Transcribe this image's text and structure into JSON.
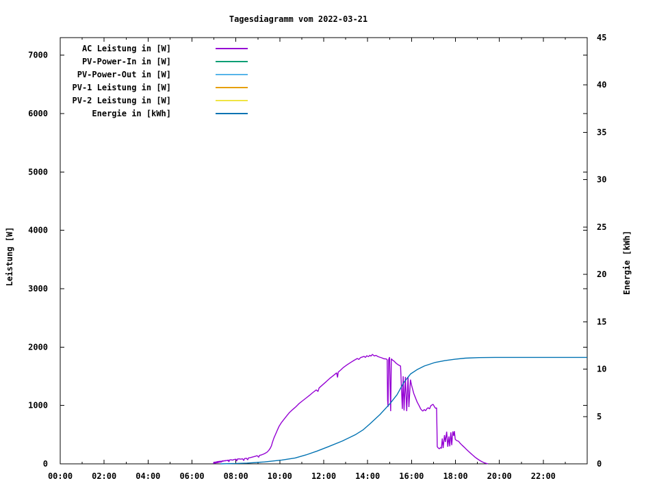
{
  "chart_data": {
    "type": "line",
    "title": "Tagesdiagramm vom 2022-03-21",
    "xlabel": "",
    "ylabel": "Leistung [W]",
    "y2label": "Energie [kWh]",
    "x_axis": {
      "min": 0,
      "max": 24,
      "major_tick_hours": [
        0,
        2,
        4,
        6,
        8,
        10,
        12,
        14,
        16,
        18,
        20,
        22
      ],
      "minor_every_hours": 1,
      "tick_labels": [
        "00:00",
        "02:00",
        "04:00",
        "06:00",
        "08:00",
        "10:00",
        "12:00",
        "14:00",
        "16:00",
        "18:00",
        "20:00",
        "22:00"
      ]
    },
    "y_left_axis": {
      "label": "Leistung [W]",
      "min": 0,
      "max": 7300,
      "ticks": [
        0,
        1000,
        2000,
        3000,
        4000,
        5000,
        6000,
        7000
      ]
    },
    "y_right_axis": {
      "label": "Energie [kWh]",
      "min": 0,
      "max": 45,
      "ticks": [
        0,
        5,
        10,
        15,
        20,
        25,
        30,
        35,
        40,
        45
      ]
    },
    "grid": false,
    "legend_position": "top-left-inside",
    "legend": [
      {
        "label": "AC Leistung in [W]",
        "color": "#9400d3"
      },
      {
        "label": "PV-Power-In in [W]",
        "color": "#009e73"
      },
      {
        "label": "PV-Power-Out in [W]",
        "color": "#56b4e9"
      },
      {
        "label": "PV-1 Leistung in [W]",
        "color": "#e69f00"
      },
      {
        "label": "PV-2 Leistung in [W]",
        "color": "#f0e442"
      },
      {
        "label": "Energie in [kWh]",
        "color": "#0072b2"
      }
    ],
    "series": [
      {
        "name": "AC Leistung in [W]",
        "axis": "left",
        "color": "#9400d3",
        "unit": "W",
        "points": [
          [
            6.98,
            2
          ],
          [
            7.0,
            30
          ],
          [
            7.02,
            6
          ],
          [
            7.04,
            34
          ],
          [
            7.06,
            10
          ],
          [
            7.08,
            36
          ],
          [
            7.1,
            12
          ],
          [
            7.12,
            40
          ],
          [
            7.14,
            14
          ],
          [
            7.16,
            44
          ],
          [
            7.18,
            16
          ],
          [
            7.2,
            46
          ],
          [
            7.22,
            20
          ],
          [
            7.25,
            48
          ],
          [
            7.28,
            24
          ],
          [
            7.31,
            50
          ],
          [
            7.34,
            28
          ],
          [
            7.38,
            55
          ],
          [
            7.42,
            42
          ],
          [
            7.46,
            58
          ],
          [
            7.5,
            48
          ],
          [
            7.55,
            60
          ],
          [
            7.6,
            54
          ],
          [
            7.65,
            66
          ],
          [
            7.68,
            34
          ],
          [
            7.71,
            66
          ],
          [
            7.78,
            70
          ],
          [
            7.85,
            64
          ],
          [
            7.92,
            74
          ],
          [
            8.0,
            80
          ],
          [
            8.04,
            48
          ],
          [
            8.07,
            82
          ],
          [
            8.15,
            86
          ],
          [
            8.23,
            80
          ],
          [
            8.3,
            88
          ],
          [
            8.36,
            56
          ],
          [
            8.39,
            90
          ],
          [
            8.48,
            96
          ],
          [
            8.54,
            68
          ],
          [
            8.57,
            100
          ],
          [
            8.67,
            108
          ],
          [
            8.77,
            118
          ],
          [
            8.87,
            128
          ],
          [
            8.97,
            140
          ],
          [
            9.04,
            112
          ],
          [
            9.07,
            144
          ],
          [
            9.15,
            152
          ],
          [
            9.24,
            164
          ],
          [
            9.33,
            180
          ],
          [
            9.42,
            200
          ],
          [
            9.5,
            232
          ],
          [
            9.57,
            270
          ],
          [
            9.62,
            310
          ],
          [
            9.66,
            363
          ],
          [
            9.73,
            440
          ],
          [
            9.79,
            492
          ],
          [
            9.88,
            570
          ],
          [
            9.97,
            645
          ],
          [
            10.08,
            710
          ],
          [
            10.19,
            762
          ],
          [
            10.31,
            820
          ],
          [
            10.44,
            879
          ],
          [
            10.58,
            928
          ],
          [
            10.72,
            973
          ],
          [
            10.87,
            1030
          ],
          [
            11.03,
            1078
          ],
          [
            11.19,
            1125
          ],
          [
            11.35,
            1172
          ],
          [
            11.5,
            1220
          ],
          [
            11.66,
            1266
          ],
          [
            11.74,
            1240
          ],
          [
            11.79,
            1300
          ],
          [
            11.97,
            1360
          ],
          [
            12.12,
            1410
          ],
          [
            12.28,
            1465
          ],
          [
            12.44,
            1512
          ],
          [
            12.59,
            1559
          ],
          [
            12.63,
            1480
          ],
          [
            12.66,
            1570
          ],
          [
            12.78,
            1610
          ],
          [
            12.9,
            1652
          ],
          [
            13.06,
            1695
          ],
          [
            13.22,
            1735
          ],
          [
            13.38,
            1772
          ],
          [
            13.53,
            1805
          ],
          [
            13.6,
            1788
          ],
          [
            13.68,
            1820
          ],
          [
            13.84,
            1840
          ],
          [
            13.9,
            1822
          ],
          [
            13.96,
            1852
          ],
          [
            14.04,
            1836
          ],
          [
            14.1,
            1860
          ],
          [
            14.15,
            1845
          ],
          [
            14.22,
            1875
          ],
          [
            14.3,
            1848
          ],
          [
            14.38,
            1858
          ],
          [
            14.46,
            1840
          ],
          [
            14.54,
            1828
          ],
          [
            14.64,
            1816
          ],
          [
            14.74,
            1800
          ],
          [
            14.85,
            1797
          ],
          [
            14.89,
            1782
          ],
          [
            14.91,
            1090
          ],
          [
            14.93,
            976
          ],
          [
            14.96,
            1790
          ],
          [
            15.0,
            1828
          ],
          [
            15.03,
            1200
          ],
          [
            15.05,
            903
          ],
          [
            15.08,
            1800
          ],
          [
            15.12,
            1782
          ],
          [
            15.2,
            1760
          ],
          [
            15.3,
            1722
          ],
          [
            15.4,
            1695
          ],
          [
            15.5,
            1675
          ],
          [
            15.58,
            940
          ],
          [
            15.62,
            1500
          ],
          [
            15.66,
            914
          ],
          [
            15.72,
            1490
          ],
          [
            15.78,
            903
          ],
          [
            15.84,
            1488
          ],
          [
            15.88,
            973
          ],
          [
            15.95,
            1442
          ],
          [
            16.0,
            1348
          ],
          [
            16.1,
            1207
          ],
          [
            16.18,
            1130
          ],
          [
            16.26,
            1055
          ],
          [
            16.34,
            1000
          ],
          [
            16.42,
            938
          ],
          [
            16.51,
            903
          ],
          [
            16.58,
            930
          ],
          [
            16.64,
            910
          ],
          [
            16.7,
            945
          ],
          [
            16.76,
            961
          ],
          [
            16.82,
            940
          ],
          [
            16.88,
            996
          ],
          [
            16.98,
            1020
          ],
          [
            17.05,
            973
          ],
          [
            17.1,
            950
          ],
          [
            17.14,
            960
          ],
          [
            17.16,
            560
          ],
          [
            17.17,
            293
          ],
          [
            17.22,
            270
          ],
          [
            17.27,
            258
          ],
          [
            17.32,
            280
          ],
          [
            17.36,
            265
          ],
          [
            17.4,
            434
          ],
          [
            17.44,
            270
          ],
          [
            17.5,
            492
          ],
          [
            17.54,
            375
          ],
          [
            17.6,
            551
          ],
          [
            17.65,
            293
          ],
          [
            17.7,
            469
          ],
          [
            17.74,
            300
          ],
          [
            17.79,
            540
          ],
          [
            17.83,
            320
          ],
          [
            17.88,
            555
          ],
          [
            17.92,
            480
          ],
          [
            17.95,
            560
          ],
          [
            17.99,
            420
          ],
          [
            18.05,
            400
          ],
          [
            18.14,
            387
          ],
          [
            18.22,
            350
          ],
          [
            18.3,
            320
          ],
          [
            18.4,
            285
          ],
          [
            18.5,
            248
          ],
          [
            18.6,
            212
          ],
          [
            18.7,
            178
          ],
          [
            18.8,
            145
          ],
          [
            18.9,
            112
          ],
          [
            19.0,
            85
          ],
          [
            19.1,
            60
          ],
          [
            19.2,
            38
          ],
          [
            19.3,
            20
          ],
          [
            19.4,
            8
          ],
          [
            19.48,
            1
          ]
        ]
      },
      {
        "name": "Energie in [kWh]",
        "axis": "right",
        "color": "#0072b2",
        "unit": "kWh",
        "points": [
          [
            7.3,
            0.0
          ],
          [
            8.0,
            0.04
          ],
          [
            8.5,
            0.08
          ],
          [
            9.3,
            0.2
          ],
          [
            10.1,
            0.4
          ],
          [
            10.7,
            0.62
          ],
          [
            11.2,
            0.95
          ],
          [
            11.7,
            1.35
          ],
          [
            12.2,
            1.8
          ],
          [
            12.84,
            2.4
          ],
          [
            13.46,
            3.1
          ],
          [
            13.8,
            3.6
          ],
          [
            14.09,
            4.19
          ],
          [
            14.56,
            5.2
          ],
          [
            15.02,
            6.36
          ],
          [
            15.34,
            7.3
          ],
          [
            15.65,
            8.6
          ],
          [
            15.96,
            9.5
          ],
          [
            16.27,
            9.97
          ],
          [
            16.58,
            10.33
          ],
          [
            17.05,
            10.69
          ],
          [
            17.52,
            10.9
          ],
          [
            17.98,
            11.05
          ],
          [
            18.45,
            11.16
          ],
          [
            19.08,
            11.22
          ],
          [
            19.8,
            11.24
          ],
          [
            24.0,
            11.24
          ]
        ]
      }
    ]
  }
}
